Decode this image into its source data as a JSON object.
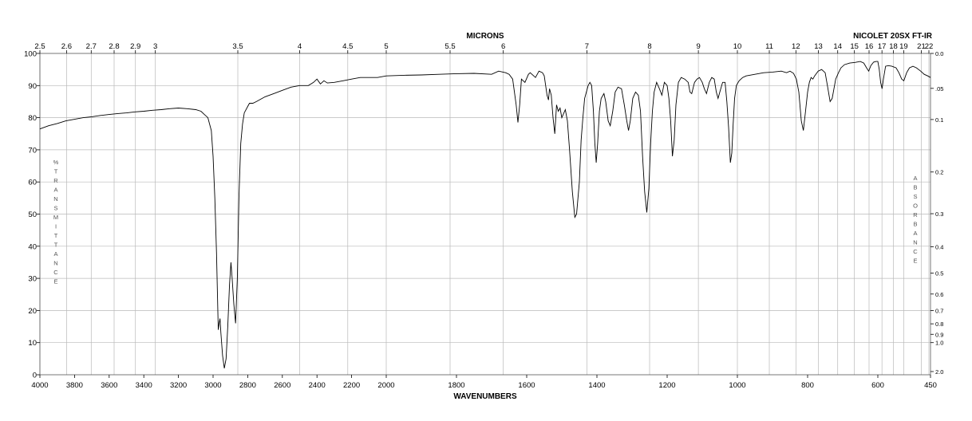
{
  "chart_data": {
    "type": "line",
    "title": "NICOLET 20SX FT-IR",
    "top_axis_title": "MICRONS",
    "xlabel": "WAVENUMBERS",
    "ylabel_left": "% TRANSMITTANCE",
    "ylabel_right": "ABSORBANCE",
    "x_ticks": [
      {
        "v": 4000,
        "label": "4000"
      },
      {
        "v": 3800,
        "label": "3800"
      },
      {
        "v": 3600,
        "label": "3600"
      },
      {
        "v": 3400,
        "label": "3400"
      },
      {
        "v": 3200,
        "label": "3200"
      },
      {
        "v": 3000,
        "label": "3000"
      },
      {
        "v": 2800,
        "label": "2800"
      },
      {
        "v": 2600,
        "label": "2600"
      },
      {
        "v": 2400,
        "label": "2400"
      },
      {
        "v": 2200,
        "label": "2200"
      },
      {
        "v": 2000,
        "label": "2000"
      },
      {
        "v": 1800,
        "label": "1800"
      },
      {
        "v": 1600,
        "label": "1600"
      },
      {
        "v": 1400,
        "label": "1400"
      },
      {
        "v": 1200,
        "label": "1200"
      },
      {
        "v": 1000,
        "label": "1000"
      },
      {
        "v": 800,
        "label": "800"
      },
      {
        "v": 600,
        "label": "600"
      },
      {
        "v": 450,
        "label": "450"
      }
    ],
    "micron_ticks": [
      {
        "v": 2.5,
        "label": "2.5"
      },
      {
        "v": 2.6,
        "label": "2.6"
      },
      {
        "v": 2.7,
        "label": "2.7"
      },
      {
        "v": 2.8,
        "label": "2.8"
      },
      {
        "v": 2.9,
        "label": "2.9"
      },
      {
        "v": 3.0,
        "label": "3"
      },
      {
        "v": 3.5,
        "label": "3.5"
      },
      {
        "v": 4.0,
        "label": "4"
      },
      {
        "v": 4.5,
        "label": "4.5"
      },
      {
        "v": 5.0,
        "label": "5"
      },
      {
        "v": 5.5,
        "label": "5.5"
      },
      {
        "v": 6.0,
        "label": "6"
      },
      {
        "v": 7.0,
        "label": "7"
      },
      {
        "v": 8.0,
        "label": "8"
      },
      {
        "v": 9.0,
        "label": "9"
      },
      {
        "v": 10.0,
        "label": "10"
      },
      {
        "v": 11.0,
        "label": "11"
      },
      {
        "v": 12.0,
        "label": "12"
      },
      {
        "v": 13.0,
        "label": "13"
      },
      {
        "v": 14.0,
        "label": "14"
      },
      {
        "v": 15.0,
        "label": "15"
      },
      {
        "v": 16.0,
        "label": "16"
      },
      {
        "v": 17.0,
        "label": "17"
      },
      {
        "v": 18.0,
        "label": "18"
      },
      {
        "v": 19.0,
        "label": "19"
      },
      {
        "v": 21.0,
        "label": "21"
      },
      {
        "v": 22.0,
        "label": "22"
      }
    ],
    "y_ticks": [
      0,
      10,
      20,
      30,
      40,
      50,
      60,
      70,
      80,
      90,
      100
    ],
    "absorbance_ticks": [
      {
        "v": 0.0,
        "label": "0.0"
      },
      {
        "v": 0.05,
        "label": ".05"
      },
      {
        "v": 0.1,
        "label": "0.1"
      },
      {
        "v": 0.2,
        "label": "0.2"
      },
      {
        "v": 0.3,
        "label": "0.3"
      },
      {
        "v": 0.4,
        "label": "0.4"
      },
      {
        "v": 0.5,
        "label": "0.5"
      },
      {
        "v": 0.6,
        "label": "0.6"
      },
      {
        "v": 0.7,
        "label": "0.7"
      },
      {
        "v": 0.8,
        "label": "0.8"
      },
      {
        "v": 0.9,
        "label": "0.9"
      },
      {
        "v": 1.0,
        "label": "1.0"
      },
      {
        "v": 2.0,
        "label": "2.0"
      }
    ],
    "xlim": [
      4000,
      450
    ],
    "ylim": [
      0,
      100
    ],
    "grid": true,
    "series": [
      {
        "points": [
          [
            4000,
            76.5
          ],
          [
            3950,
            77.5
          ],
          [
            3900,
            78.2
          ],
          [
            3850,
            79
          ],
          [
            3800,
            79.5
          ],
          [
            3750,
            80
          ],
          [
            3700,
            80.3
          ],
          [
            3650,
            80.7
          ],
          [
            3600,
            81
          ],
          [
            3550,
            81.3
          ],
          [
            3500,
            81.5
          ],
          [
            3450,
            81.8
          ],
          [
            3400,
            82
          ],
          [
            3350,
            82.3
          ],
          [
            3300,
            82.5
          ],
          [
            3250,
            82.8
          ],
          [
            3200,
            83
          ],
          [
            3150,
            82.8
          ],
          [
            3100,
            82.5
          ],
          [
            3070,
            82
          ],
          [
            3050,
            81
          ],
          [
            3030,
            80
          ],
          [
            3010,
            76
          ],
          [
            3000,
            68
          ],
          [
            2990,
            55
          ],
          [
            2980,
            38
          ],
          [
            2970,
            14
          ],
          [
            2965,
            16
          ],
          [
            2960,
            17.5
          ],
          [
            2955,
            13
          ],
          [
            2945,
            6
          ],
          [
            2935,
            2
          ],
          [
            2925,
            5
          ],
          [
            2915,
            15
          ],
          [
            2905,
            28
          ],
          [
            2897,
            35
          ],
          [
            2890,
            30
          ],
          [
            2880,
            22
          ],
          [
            2870,
            16
          ],
          [
            2860,
            30
          ],
          [
            2850,
            56
          ],
          [
            2840,
            72
          ],
          [
            2830,
            78
          ],
          [
            2820,
            81.5
          ],
          [
            2800,
            83.5
          ],
          [
            2790,
            84.5
          ],
          [
            2770,
            84.5
          ],
          [
            2750,
            85
          ],
          [
            2700,
            86.5
          ],
          [
            2650,
            87.5
          ],
          [
            2600,
            88.5
          ],
          [
            2550,
            89.5
          ],
          [
            2500,
            90
          ],
          [
            2450,
            90
          ],
          [
            2420,
            91
          ],
          [
            2400,
            92
          ],
          [
            2380,
            90.5
          ],
          [
            2360,
            91.5
          ],
          [
            2340,
            90.8
          ],
          [
            2300,
            91
          ],
          [
            2250,
            91.5
          ],
          [
            2200,
            92
          ],
          [
            2150,
            92.5
          ],
          [
            2100,
            92.5
          ],
          [
            2050,
            92.5
          ],
          [
            2000,
            93
          ],
          [
            1950,
            93.2
          ],
          [
            1900,
            93.3
          ],
          [
            1850,
            93.5
          ],
          [
            1800,
            93.7
          ],
          [
            1750,
            93.8
          ],
          [
            1700,
            93.5
          ],
          [
            1680,
            94.5
          ],
          [
            1660,
            94
          ],
          [
            1650,
            93.5
          ],
          [
            1640,
            92
          ],
          [
            1630,
            84
          ],
          [
            1625,
            78.5
          ],
          [
            1620,
            84
          ],
          [
            1615,
            92
          ],
          [
            1605,
            91
          ],
          [
            1595,
            93.5
          ],
          [
            1590,
            94
          ],
          [
            1585,
            93.5
          ],
          [
            1575,
            92.5
          ],
          [
            1565,
            94.5
          ],
          [
            1555,
            94
          ],
          [
            1550,
            93
          ],
          [
            1542,
            87
          ],
          [
            1538,
            85.5
          ],
          [
            1535,
            89
          ],
          [
            1530,
            87
          ],
          [
            1525,
            80
          ],
          [
            1520,
            75
          ],
          [
            1515,
            84
          ],
          [
            1510,
            82
          ],
          [
            1505,
            83
          ],
          [
            1500,
            80
          ],
          [
            1490,
            82.5
          ],
          [
            1484,
            79
          ],
          [
            1478,
            70
          ],
          [
            1470,
            57
          ],
          [
            1463,
            49
          ],
          [
            1458,
            50
          ],
          [
            1450,
            60
          ],
          [
            1445,
            73
          ],
          [
            1440,
            80
          ],
          [
            1435,
            86
          ],
          [
            1430,
            88
          ],
          [
            1425,
            90
          ],
          [
            1420,
            91
          ],
          [
            1415,
            90
          ],
          [
            1410,
            82
          ],
          [
            1406,
            72
          ],
          [
            1402,
            66
          ],
          [
            1398,
            72
          ],
          [
            1393,
            82
          ],
          [
            1388,
            86
          ],
          [
            1380,
            87.5
          ],
          [
            1375,
            85
          ],
          [
            1368,
            79
          ],
          [
            1362,
            77.5
          ],
          [
            1355,
            82
          ],
          [
            1348,
            88
          ],
          [
            1340,
            89.5
          ],
          [
            1330,
            89
          ],
          [
            1322,
            84
          ],
          [
            1315,
            79
          ],
          [
            1310,
            76
          ],
          [
            1305,
            79
          ],
          [
            1298,
            86
          ],
          [
            1290,
            88
          ],
          [
            1282,
            87
          ],
          [
            1276,
            82
          ],
          [
            1270,
            68
          ],
          [
            1264,
            57
          ],
          [
            1258,
            50.5
          ],
          [
            1252,
            58
          ],
          [
            1247,
            72
          ],
          [
            1242,
            82
          ],
          [
            1237,
            88
          ],
          [
            1230,
            91
          ],
          [
            1222,
            89
          ],
          [
            1215,
            87
          ],
          [
            1208,
            91
          ],
          [
            1200,
            90
          ],
          [
            1195,
            86
          ],
          [
            1190,
            79
          ],
          [
            1185,
            68
          ],
          [
            1180,
            73
          ],
          [
            1175,
            84
          ],
          [
            1168,
            91
          ],
          [
            1160,
            92.5
          ],
          [
            1150,
            92
          ],
          [
            1140,
            91
          ],
          [
            1135,
            88
          ],
          [
            1130,
            87.5
          ],
          [
            1122,
            91
          ],
          [
            1115,
            92
          ],
          [
            1108,
            92.5
          ],
          [
            1100,
            91
          ],
          [
            1094,
            89
          ],
          [
            1088,
            87.5
          ],
          [
            1080,
            91
          ],
          [
            1073,
            92.5
          ],
          [
            1066,
            92
          ],
          [
            1060,
            88
          ],
          [
            1055,
            86
          ],
          [
            1050,
            88
          ],
          [
            1042,
            91
          ],
          [
            1035,
            91
          ],
          [
            1030,
            85
          ],
          [
            1025,
            77
          ],
          [
            1020,
            66
          ],
          [
            1016,
            69
          ],
          [
            1012,
            78
          ],
          [
            1008,
            86
          ],
          [
            1003,
            90
          ],
          [
            995,
            91.5
          ],
          [
            985,
            92.5
          ],
          [
            975,
            93
          ],
          [
            950,
            93.5
          ],
          [
            925,
            94
          ],
          [
            900,
            94.2
          ],
          [
            875,
            94.5
          ],
          [
            860,
            94
          ],
          [
            850,
            94.5
          ],
          [
            840,
            93.8
          ],
          [
            832,
            92
          ],
          [
            825,
            88
          ],
          [
            818,
            79
          ],
          [
            812,
            76
          ],
          [
            806,
            82
          ],
          [
            800,
            88
          ],
          [
            795,
            91
          ],
          [
            790,
            92.5
          ],
          [
            785,
            92
          ],
          [
            780,
            93
          ],
          [
            770,
            94.5
          ],
          [
            760,
            95
          ],
          [
            750,
            94
          ],
          [
            742,
            89
          ],
          [
            736,
            85
          ],
          [
            730,
            86
          ],
          [
            725,
            89
          ],
          [
            720,
            92
          ],
          [
            712,
            94
          ],
          [
            705,
            95.5
          ],
          [
            695,
            96.5
          ],
          [
            680,
            97
          ],
          [
            665,
            97.2
          ],
          [
            650,
            97.5
          ],
          [
            640,
            97
          ],
          [
            632,
            95.5
          ],
          [
            626,
            94.5
          ],
          [
            620,
            96.2
          ],
          [
            612,
            97.3
          ],
          [
            605,
            97.5
          ],
          [
            600,
            97.5
          ],
          [
            596,
            95
          ],
          [
            592,
            91
          ],
          [
            588,
            89
          ],
          [
            584,
            92
          ],
          [
            578,
            96
          ],
          [
            570,
            96.2
          ],
          [
            560,
            96
          ],
          [
            548,
            95.5
          ],
          [
            540,
            94
          ],
          [
            532,
            92
          ],
          [
            526,
            91.5
          ],
          [
            518,
            94
          ],
          [
            510,
            95.5
          ],
          [
            500,
            96
          ],
          [
            490,
            95.5
          ],
          [
            478,
            94.5
          ],
          [
            468,
            93.5
          ],
          [
            458,
            93
          ],
          [
            450,
            92.5
          ]
        ]
      }
    ]
  }
}
